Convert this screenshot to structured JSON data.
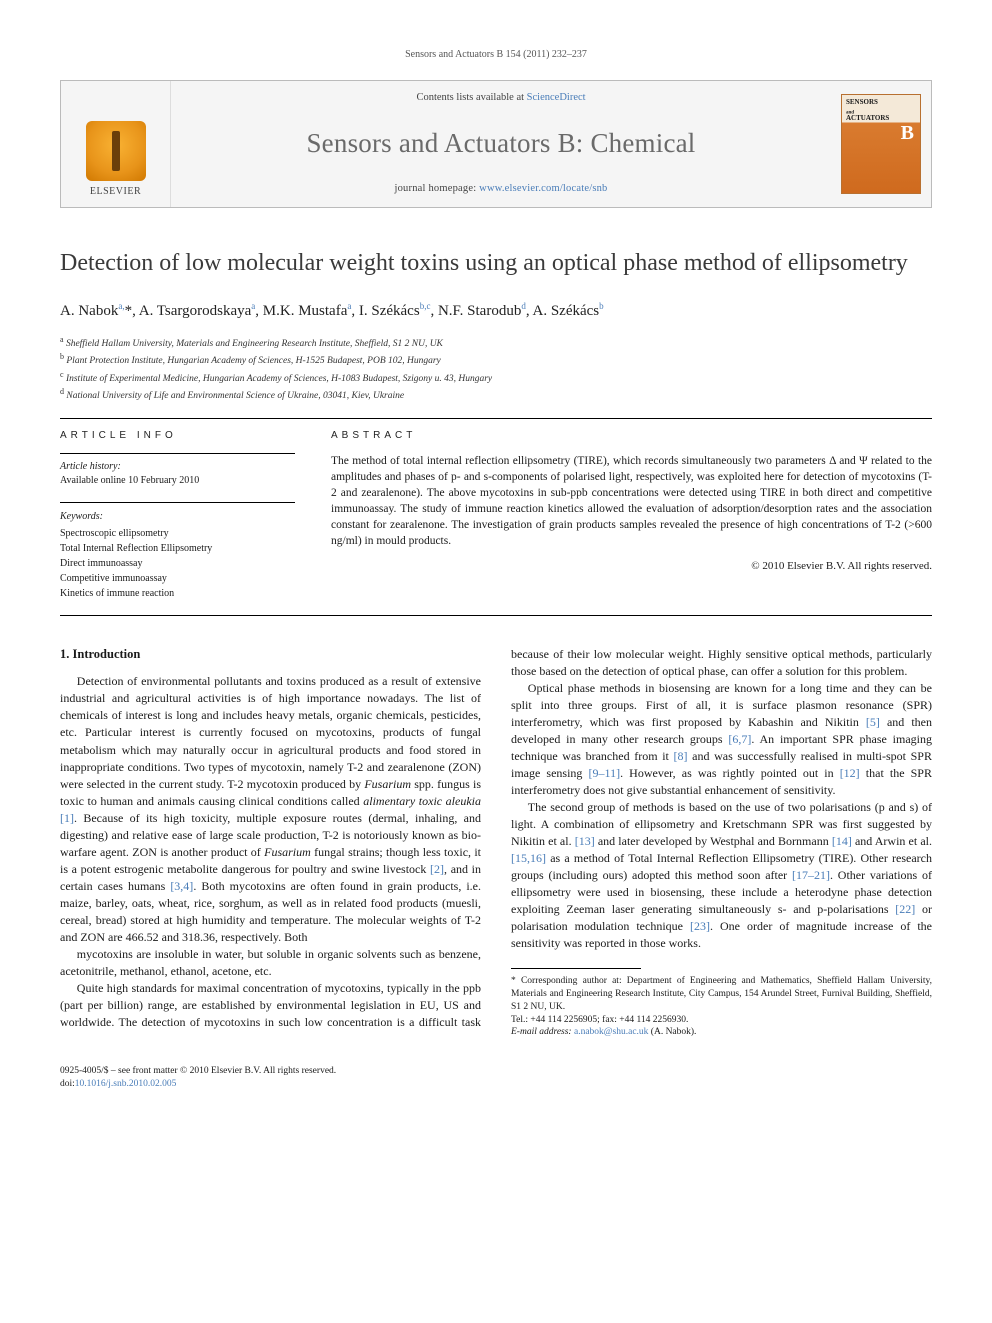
{
  "running_head": {
    "text": "Sensors and Actuators B 154 (2011) 232–237"
  },
  "header": {
    "contents_prefix": "Contents lists available at ",
    "contents_link": "ScienceDirect",
    "journal": "Sensors and Actuators B: Chemical",
    "homepage_prefix": "journal homepage: ",
    "homepage_link": "www.elsevier.com/locate/snb",
    "publisher_label": "ELSEVIER",
    "cover_top": "SENSORS",
    "cover_mid": "ACTUATORS",
    "cover_b": "B"
  },
  "title": "Detection of low molecular weight toxins using an optical phase method of ellipsometry",
  "authors_html": "A. Nabok<sup>a,</sup>*, A. Tsargorodskaya<sup>a</sup>, M.K. Mustafa<sup>a</sup>, I. Székács<sup>b,c</sup>, N.F. Starodub<sup>d</sup>, A. Székács<sup>b</sup>",
  "affiliations": [
    {
      "sup": "a",
      "text": "Sheffield Hallam University, Materials and Engineering Research Institute, Sheffield, S1 2 NU, UK"
    },
    {
      "sup": "b",
      "text": "Plant Protection Institute, Hungarian Academy of Sciences, H-1525 Budapest, POB 102, Hungary"
    },
    {
      "sup": "c",
      "text": "Institute of Experimental Medicine, Hungarian Academy of Sciences, H-1083 Budapest, Szigony u. 43, Hungary"
    },
    {
      "sup": "d",
      "text": "National University of Life and Environmental Science of Ukraine, 03041, Kiev, Ukraine"
    }
  ],
  "info": {
    "article_info_head": "article info",
    "abstract_head": "abstract",
    "history_label": "Article history:",
    "history_value": "Available online 10 February 2010",
    "keywords_label": "Keywords:",
    "keywords": [
      "Spectroscopic ellipsometry",
      "Total Internal Reflection Ellipsometry",
      "Direct immunoassay",
      "Competitive immunoassay",
      "Kinetics of immune reaction"
    ]
  },
  "abstract": "The method of total internal reflection ellipsometry (TIRE), which records simultaneously two parameters Δ and Ψ related to the amplitudes and phases of p- and s-components of polarised light, respectively, was exploited here for detection of mycotoxins (T-2 and zearalenone). The above mycotoxins in sub-ppb concentrations were detected using TIRE in both direct and competitive immunoassay. The study of immune reaction kinetics allowed the evaluation of adsorption/desorption rates and the association constant for zearalenone. The investigation of grain products samples revealed the presence of high concentrations of T-2 (>600 ng/ml) in mould products.",
  "abstract_copyright": "© 2010 Elsevier B.V. All rights reserved.",
  "section1_head": "1. Introduction",
  "paragraphs": [
    "Detection of environmental pollutants and toxins produced as a result of extensive industrial and agricultural activities is of high importance nowadays. The list of chemicals of interest is long and includes heavy metals, organic chemicals, pesticides, etc. Particular interest is currently focused on mycotoxins, products of fungal metabolism which may naturally occur in agricultural products and food stored in inappropriate conditions. Two types of mycotoxin, namely T-2 and zearalenone (ZON) were selected in the current study. T-2 mycotoxin produced by Fusarium spp. fungus is toxic to human and animals causing clinical conditions called alimentary toxic aleukia [1]. Because of its high toxicity, multiple exposure routes (dermal, inhaling, and digesting) and relative ease of large scale production, T-2 is notoriously known as bio-warfare agent. ZON is another product of Fusarium fungal strains; though less toxic, it is a potent estrogenic metabolite dangerous for poultry and swine livestock [2], and in certain cases humans [3,4]. Both mycotoxins are often found in grain products, i.e. maize, barley, oats, wheat, rice, sorghum, as well as in related food products (muesli, cereal, bread) stored at high humidity and temperature. The molecular weights of T-2 and ZON are 466.52 and 318.36, respectively. Both",
    "mycotoxins are insoluble in water, but soluble in organic solvents such as benzene, acetonitrile, methanol, ethanol, acetone, etc.",
    "Quite high standards for maximal concentration of mycotoxins, typically in the ppb (part per billion) range, are established by environmental legislation in EU, US and worldwide. The detection of mycotoxins in such low concentration is a difficult task because of their low molecular weight. Highly sensitive optical methods, particularly those based on the detection of optical phase, can offer a solution for this problem.",
    "Optical phase methods in biosensing are known for a long time and they can be split into three groups. First of all, it is surface plasmon resonance (SPR) interferometry, which was first proposed by Kabashin and Nikitin [5] and then developed in many other research groups [6,7]. An important SPR phase imaging technique was branched from it [8] and was successfully realised in multi-spot SPR image sensing [9–11]. However, as was rightly pointed out in [12] that the SPR interferometry does not give substantial enhancement of sensitivity.",
    "The second group of methods is based on the use of two polarisations (p and s) of light. A combination of ellipsometry and Kretschmann SPR was first suggested by Nikitin et al. [13] and later developed by Westphal and Bornmann [14] and Arwin et al. [15,16] as a method of Total Internal Reflection Ellipsometry (TIRE). Other research groups (including ours) adopted this method soon after [17–21]. Other variations of ellipsometry were used in biosensing, these include a heterodyne phase detection exploiting Zeeman laser generating simultaneously s- and p-polarisations [22] or polarisation modulation technique [23]. One order of magnitude increase of the sensitivity was reported in those works."
  ],
  "refs_inline": {
    "1": "[1]",
    "2": "[2]",
    "34": "[3,4]",
    "5": "[5]",
    "67": "[6,7]",
    "8": "[8]",
    "911": "[9–11]",
    "12": "[12]",
    "13": "[13]",
    "14": "[14]",
    "1516": "[15,16]",
    "1721": "[17–21]",
    "22": "[22]",
    "23": "[23]"
  },
  "footnote": {
    "corr_label": "* Corresponding author at:",
    "corr_text": " Department of Engineering and Mathematics, Sheffield Hallam University, Materials and Engineering Research Institute, City Campus, 154 Arundel Street, Furnival Building, Sheffield, S1 2 NU, UK.",
    "tel": "Tel.: +44 114 2256905; fax: +44 114 2256930.",
    "email_label": "E-mail address: ",
    "email": "a.nabok@shu.ac.uk",
    "email_who": " (A. Nabok)."
  },
  "bottom": {
    "line1": "0925-4005/$ – see front matter © 2010 Elsevier B.V. All rights reserved.",
    "doi_label": "doi:",
    "doi": "10.1016/j.snb.2010.02.005"
  },
  "colors": {
    "link": "#4a7db8",
    "text": "#1a1a1a",
    "header_bg": "#f5f5f5",
    "border": "#bbbbbb",
    "cover_orange": "#d97b2f"
  },
  "fontsizes": {
    "title": 24,
    "journal": 27,
    "body": 12,
    "abstract": 11.5,
    "affil": 9.5,
    "footnote": 9.5,
    "info_small": 10
  }
}
